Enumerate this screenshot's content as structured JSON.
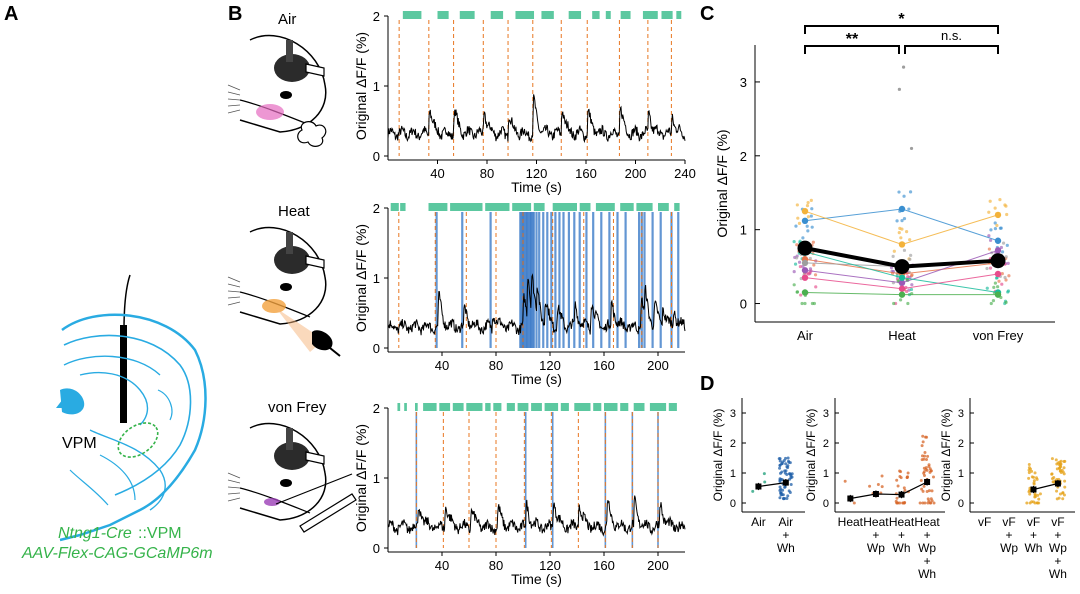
{
  "panels": {
    "a": {
      "letter": "A",
      "vpm_label": "VPM",
      "caption_line1_italic": "Ntng1-Cre",
      "caption_line1_rest": "::VPM",
      "caption_line2": "AAV-Flex-CAG-GCaMP6m",
      "colors": {
        "brain": "#29abe2",
        "virus": "#35b34a",
        "fiber": "#000000"
      }
    },
    "b": {
      "letter": "B"
    },
    "c": {
      "letter": "C"
    },
    "d": {
      "letter": "D"
    }
  },
  "colors": {
    "event_green": "#5cc8a0",
    "stim_orange": "#e87722",
    "heat_blue": "#2f73c5",
    "trace": "#000000"
  },
  "chart_data": [
    {
      "id": "b-air",
      "type": "line",
      "title": "Air",
      "xlabel": "Time (s)",
      "ylabel": "Original ΔF/F (%)",
      "xlim": [
        0,
        240
      ],
      "ylim": [
        0,
        2
      ],
      "xticks": [
        40,
        80,
        120,
        160,
        200,
        240
      ],
      "yticks": [
        0,
        1,
        2
      ],
      "baseline": 0.32,
      "stim_times": [
        9,
        33,
        53,
        77,
        97,
        117,
        140,
        161,
        187,
        210,
        229
      ],
      "event_bars": [
        [
          12,
          27
        ],
        [
          40,
          49
        ],
        [
          58,
          70
        ],
        [
          83,
          93
        ],
        [
          103,
          118
        ],
        [
          124,
          134
        ],
        [
          146,
          156
        ],
        [
          165,
          171
        ],
        [
          176,
          180
        ],
        [
          188,
          196
        ],
        [
          206,
          218
        ],
        [
          221,
          230
        ],
        [
          233,
          237
        ]
      ],
      "peaks": [
        [
          33,
          0.6
        ],
        [
          53,
          0.55
        ],
        [
          77,
          0.5
        ],
        [
          97,
          0.45
        ],
        [
          117,
          0.75
        ],
        [
          140,
          0.6
        ],
        [
          161,
          0.5
        ],
        [
          187,
          0.6
        ],
        [
          210,
          0.45
        ],
        [
          229,
          0.4
        ]
      ]
    },
    {
      "id": "b-heat",
      "type": "line",
      "title": "Heat",
      "xlabel": "Time (s)",
      "ylabel": "Original ΔF/F (%)",
      "xlim": [
        0,
        220
      ],
      "ylim": [
        0,
        2
      ],
      "xticks": [
        40,
        80,
        120,
        160,
        200
      ],
      "yticks": [
        0,
        1,
        2
      ],
      "baseline": 0.3,
      "stim_times": [
        8,
        35,
        58,
        80,
        100,
        122,
        145,
        167,
        188,
        210
      ],
      "heat_lines": [
        36,
        55,
        76,
        98,
        99,
        100,
        101,
        102,
        103,
        104,
        105,
        106,
        107,
        108,
        110,
        112,
        115,
        118,
        121,
        124,
        127,
        130,
        134,
        138,
        142,
        147,
        152,
        158,
        164,
        170,
        176,
        186,
        188,
        190,
        196,
        202,
        210,
        215
      ],
      "event_bars": [
        [
          2,
          8
        ],
        [
          9,
          13
        ],
        [
          30,
          44
        ],
        [
          46,
          70
        ],
        [
          72,
          90
        ],
        [
          92,
          106
        ],
        [
          108,
          116
        ],
        [
          122,
          140
        ],
        [
          142,
          150
        ],
        [
          154,
          168
        ],
        [
          172,
          182
        ],
        [
          184,
          196
        ],
        [
          200,
          208
        ],
        [
          212,
          216
        ]
      ],
      "peaks": [
        [
          37,
          0.65
        ],
        [
          56,
          0.4
        ],
        [
          77,
          0.35
        ],
        [
          100,
          0.6
        ],
        [
          103,
          1.0
        ],
        [
          106,
          0.8
        ],
        [
          110,
          0.6
        ],
        [
          116,
          0.5
        ],
        [
          125,
          0.4
        ],
        [
          138,
          0.5
        ],
        [
          150,
          0.6
        ],
        [
          165,
          0.55
        ],
        [
          187,
          0.65
        ],
        [
          190,
          0.55
        ],
        [
          197,
          0.45
        ],
        [
          203,
          0.4
        ],
        [
          211,
          0.35
        ]
      ]
    },
    {
      "id": "b-vonfrey",
      "type": "line",
      "title": "von Frey",
      "xlabel": "Time (s)",
      "ylabel": "Original ΔF/F (%)",
      "xlim": [
        0,
        220
      ],
      "ylim": [
        0,
        2
      ],
      "xticks": [
        40,
        80,
        120,
        160,
        200
      ],
      "yticks": [
        0,
        1,
        2
      ],
      "baseline": 0.3,
      "stim_times": [
        21,
        41,
        60,
        80,
        101,
        121,
        141,
        161,
        181,
        200
      ],
      "vf_lines": [
        21,
        102,
        122,
        161,
        181,
        200
      ],
      "event_bars": [
        [
          7,
          9
        ],
        [
          12,
          14
        ],
        [
          20,
          22
        ],
        [
          26,
          36
        ],
        [
          38,
          46
        ],
        [
          48,
          56
        ],
        [
          58,
          70
        ],
        [
          72,
          76
        ],
        [
          78,
          84
        ],
        [
          88,
          94
        ],
        [
          96,
          104
        ],
        [
          106,
          114
        ],
        [
          116,
          126
        ],
        [
          128,
          134
        ],
        [
          138,
          150
        ],
        [
          152,
          158
        ],
        [
          160,
          170
        ],
        [
          172,
          178
        ],
        [
          182,
          190
        ],
        [
          194,
          206
        ],
        [
          208,
          214
        ]
      ],
      "peaks": [
        [
          22,
          0.5
        ],
        [
          42,
          0.5
        ],
        [
          61,
          0.4
        ],
        [
          81,
          0.4
        ],
        [
          102,
          0.5
        ],
        [
          122,
          0.6
        ],
        [
          141,
          0.5
        ],
        [
          162,
          0.6
        ],
        [
          182,
          0.55
        ],
        [
          201,
          0.55
        ]
      ]
    },
    {
      "id": "c",
      "type": "scatter",
      "ylabel": "Original ΔF/F (%)",
      "categories": [
        "Air",
        "Heat",
        "von Frey"
      ],
      "ylim": [
        -0.25,
        3.5
      ],
      "yticks": [
        0,
        1,
        2,
        3
      ],
      "mean_values": [
        0.75,
        0.5,
        0.58
      ],
      "mean_sem": [
        0.08,
        0.05,
        0.06
      ],
      "animals": [
        {
          "color": "#3a8fd0",
          "values": [
            1.12,
            1.28,
            0.85
          ]
        },
        {
          "color": "#f3b23a",
          "values": [
            1.25,
            0.8,
            1.2
          ]
        },
        {
          "color": "#e8734a",
          "values": [
            0.6,
            0.4,
            0.55
          ]
        },
        {
          "color": "#9b59b6",
          "values": [
            0.45,
            0.28,
            0.72
          ]
        },
        {
          "color": "#9e9e9e",
          "values": [
            0.55,
            0.5,
            0.6
          ]
        },
        {
          "color": "#1abc9c",
          "values": [
            0.7,
            0.35,
            0.15
          ]
        },
        {
          "color": "#e74c8c",
          "values": [
            0.35,
            0.2,
            0.4
          ]
        },
        {
          "color": "#4caf50",
          "values": [
            0.15,
            0.12,
            0.12
          ]
        }
      ],
      "outliers_heat": [
        2.9,
        3.2,
        2.1
      ],
      "significance": [
        {
          "from": "Air",
          "to": "von Frey",
          "label": "*"
        },
        {
          "from": "Air",
          "to": "Heat",
          "label": "**"
        },
        {
          "from": "Heat",
          "to": "von Frey",
          "label": "n.s."
        }
      ]
    },
    {
      "id": "d-air",
      "type": "scatter",
      "ylabel": "Original ΔF/F (%)",
      "ylim": [
        -0.3,
        3.5
      ],
      "yticks": [
        0,
        1,
        2,
        3
      ],
      "categories": [
        [
          "Air"
        ],
        [
          "Air",
          "+",
          "Wh"
        ]
      ],
      "means": [
        0.55,
        0.68
      ],
      "point_colors": [
        "#1a9e77",
        "#1f5fa8"
      ],
      "point_counts": [
        3,
        60
      ]
    },
    {
      "id": "d-heat",
      "type": "scatter",
      "ylabel": "Original ΔF/F (%)",
      "ylim": [
        -0.3,
        3.5
      ],
      "yticks": [
        0,
        1,
        2,
        3
      ],
      "categories": [
        [
          "Heat"
        ],
        [
          "Heat",
          "+",
          "Wp"
        ],
        [
          "Heat",
          "+",
          "Wh"
        ],
        [
          "Heat",
          "+",
          "Wp",
          "+",
          "Wh"
        ]
      ],
      "means": [
        0.15,
        0.3,
        0.28,
        0.7
      ],
      "point_colors": [
        "#d7672a",
        "#d7672a",
        "#d7672a",
        "#d7672a"
      ],
      "point_counts": [
        2,
        6,
        25,
        45
      ]
    },
    {
      "id": "d-vf",
      "type": "scatter",
      "ylabel": "Original ΔF/F (%)",
      "ylim": [
        -0.3,
        3.5
      ],
      "yticks": [
        0,
        1,
        2,
        3
      ],
      "categories": [
        [
          "vF"
        ],
        [
          "vF",
          "+",
          "Wp"
        ],
        [
          "vF",
          "+",
          "Wh"
        ],
        [
          "vF",
          "+",
          "Wp",
          "+",
          "Wh"
        ]
      ],
      "means": [
        null,
        null,
        0.45,
        0.65
      ],
      "point_colors": [
        "#e6a117",
        "#e6a117",
        "#e6a117",
        "#e6a117"
      ],
      "point_counts": [
        0,
        0,
        35,
        45
      ]
    }
  ]
}
